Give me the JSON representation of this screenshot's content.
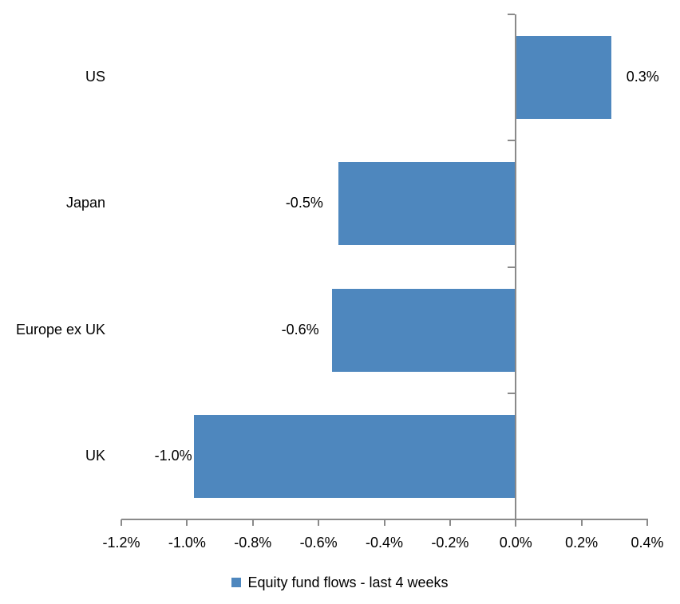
{
  "chart_data": {
    "type": "bar",
    "orientation": "horizontal",
    "title": "",
    "categories": [
      "US",
      "Japan",
      "Europe ex UK",
      "UK"
    ],
    "values": [
      0.3,
      -0.5,
      -0.6,
      -1.0
    ],
    "points": [
      {
        "category": "US",
        "value": 0.3,
        "label": "0.3%",
        "bar_end": 0.29
      },
      {
        "category": "Japan",
        "value": -0.5,
        "label": "-0.5%",
        "bar_end": -0.54
      },
      {
        "category": "Europe ex UK",
        "value": -0.6,
        "label": "-0.6%",
        "bar_end": -0.56
      },
      {
        "category": "UK",
        "value": -1.0,
        "label": "-1.0%",
        "bar_end": -0.98
      }
    ],
    "series_name": "Equity fund flows - last 4 weeks",
    "x_axis": {
      "min": -1.2,
      "max": 0.4,
      "tick_step": 0.2,
      "tick_labels": [
        "-1.2%",
        "-1.0%",
        "-0.8%",
        "-0.6%",
        "-0.4%",
        "-0.2%",
        "0.0%",
        "0.2%",
        "0.4%"
      ]
    },
    "legend_position": "bottom",
    "grid": false,
    "colors": {
      "bar": "#4E87BE",
      "axis": "#8A8A8A",
      "text": "#000000",
      "background": "#FFFFFF"
    }
  }
}
